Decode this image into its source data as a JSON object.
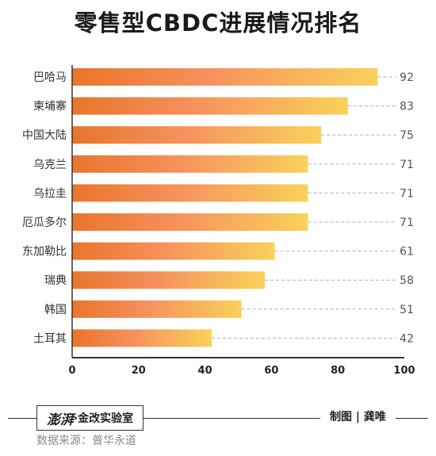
{
  "chart_data": {
    "type": "bar",
    "orientation": "horizontal",
    "title": "零售型CBDC进展情况排名",
    "categories": [
      "巴哈马",
      "柬埔寨",
      "中国大陆",
      "乌克兰",
      "乌拉圭",
      "厄瓜多尔",
      "东加勒比",
      "瑞典",
      "韩国",
      "土耳其"
    ],
    "values": [
      92,
      83,
      75,
      71,
      71,
      71,
      61,
      58,
      51,
      42
    ],
    "xlim": [
      0,
      100
    ],
    "xticks": [
      "0",
      "20",
      "40",
      "60",
      "80",
      "100"
    ],
    "xlabel": "",
    "ylabel": "",
    "grid": false,
    "colors": {
      "bar_start": "#e8752a",
      "bar_mid": "#f7915e",
      "bar_end": "#f9d25a",
      "axis": "#333333",
      "leader": "#b0b0b0"
    }
  },
  "footer": {
    "brand_logo": "澎湃",
    "brand_text": "·金改实验室",
    "credit": "制图 | 龚唯",
    "source": "数据来源：普华永道"
  }
}
